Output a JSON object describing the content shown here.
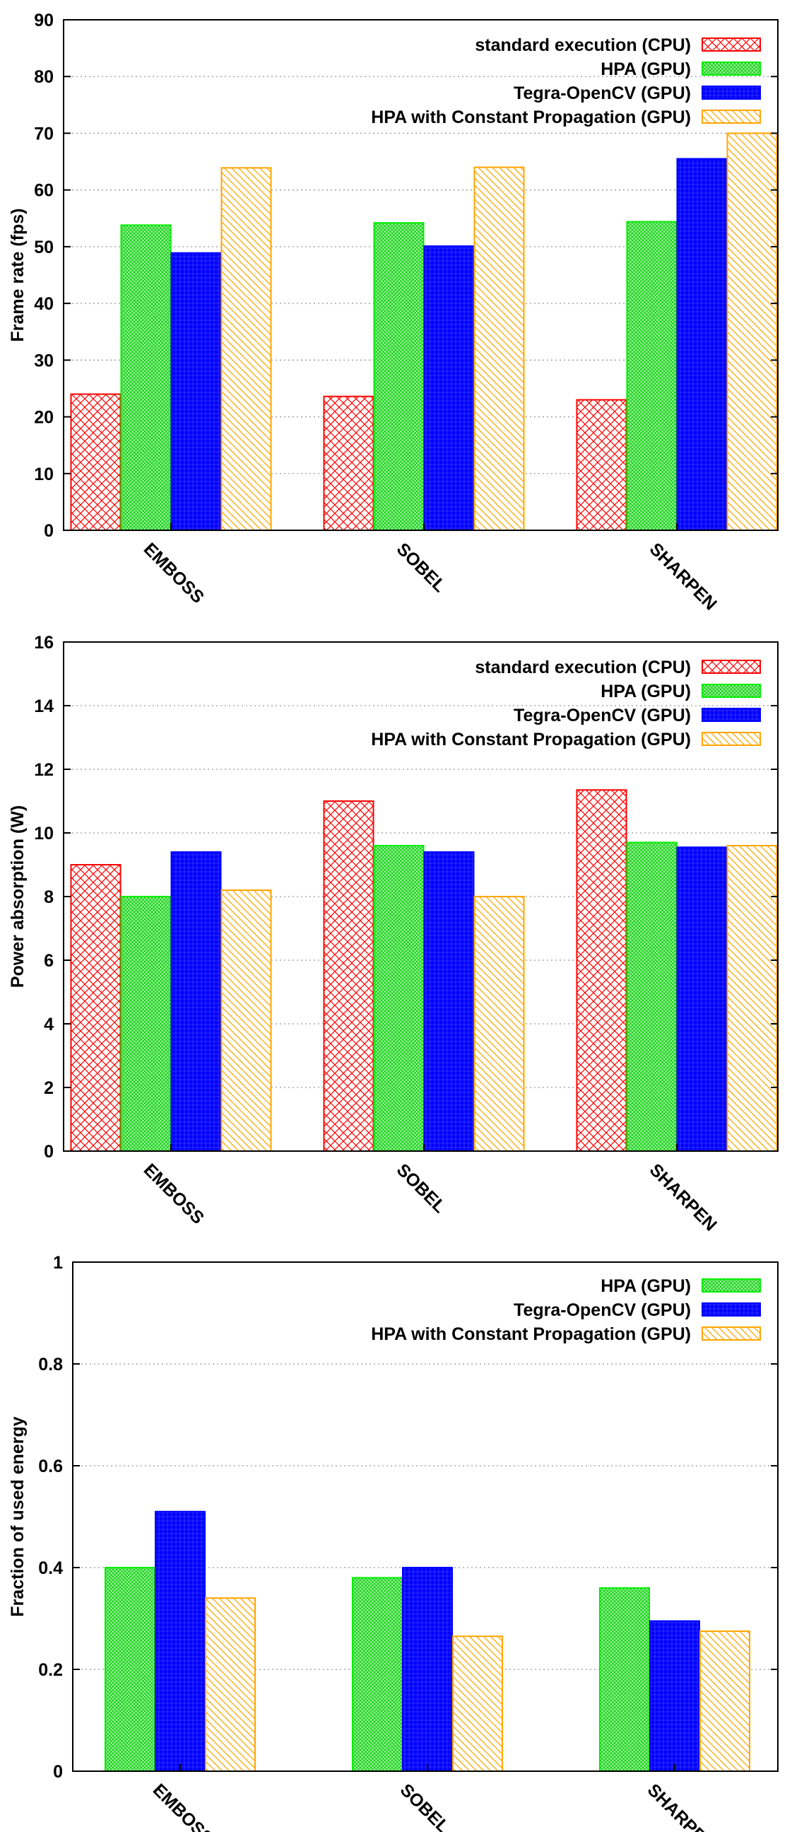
{
  "colors": {
    "cpu": "#ff0000",
    "hpa": "#00ee00",
    "tegra": "#0000ff",
    "hpa_cp": "#ffa500",
    "grid": "#999999",
    "axis": "#000000"
  },
  "chart_data": [
    {
      "type": "bar",
      "ylabel": "Frame rate (fps)",
      "ylim": [
        0,
        90
      ],
      "yticks": [
        "0",
        "10",
        "20",
        "30",
        "40",
        "50",
        "60",
        "70",
        "80",
        "90"
      ],
      "grid": true,
      "legend_position": "top-right",
      "categories": [
        "EMBOSS",
        "SOBEL",
        "SHARPEN"
      ],
      "series": [
        {
          "name": "standard execution (CPU)",
          "color": "#ff0000",
          "pattern": "crosshatch",
          "values": [
            24,
            23.6,
            23
          ]
        },
        {
          "name": "HPA (GPU)",
          "color": "#00ee00",
          "pattern": "fine-grid",
          "values": [
            53.8,
            54.2,
            54.4
          ]
        },
        {
          "name": "Tegra-OpenCV (GPU)",
          "color": "#0000ff",
          "pattern": "dense-grid",
          "values": [
            48.9,
            50.1,
            65.5
          ]
        },
        {
          "name": "HPA with Constant Propagation (GPU)",
          "color": "#ffa500",
          "pattern": "diagonal",
          "values": [
            63.9,
            64,
            70
          ]
        }
      ]
    },
    {
      "type": "bar",
      "ylabel": "Power absorption (W)",
      "ylim": [
        0,
        16
      ],
      "yticks": [
        "0",
        "2",
        "4",
        "6",
        "8",
        "10",
        "12",
        "14",
        "16"
      ],
      "grid": true,
      "legend_position": "top-right",
      "categories": [
        "EMBOSS",
        "SOBEL",
        "SHARPEN"
      ],
      "series": [
        {
          "name": "standard execution (CPU)",
          "color": "#ff0000",
          "pattern": "crosshatch",
          "values": [
            9.0,
            11.0,
            11.35
          ]
        },
        {
          "name": "HPA (GPU)",
          "color": "#00ee00",
          "pattern": "fine-grid",
          "values": [
            8.0,
            9.6,
            9.7
          ]
        },
        {
          "name": "Tegra-OpenCV (GPU)",
          "color": "#0000ff",
          "pattern": "dense-grid",
          "values": [
            9.4,
            9.4,
            9.55
          ]
        },
        {
          "name": "HPA with Constant Propagation (GPU)",
          "color": "#ffa500",
          "pattern": "diagonal",
          "values": [
            8.2,
            8.0,
            9.6
          ]
        }
      ]
    },
    {
      "type": "bar",
      "ylabel": "Fraction of used energy",
      "ylim": [
        0,
        1
      ],
      "yticks": [
        "0",
        "0.2",
        "0.4",
        "0.6",
        "0.8",
        "1"
      ],
      "grid": true,
      "legend_position": "top-right",
      "categories": [
        "EMBOSS",
        "SOBEL",
        "SHARPEN"
      ],
      "series": [
        {
          "name": "HPA (GPU)",
          "color": "#00ee00",
          "pattern": "fine-grid",
          "values": [
            0.4,
            0.38,
            0.36
          ]
        },
        {
          "name": "Tegra-OpenCV (GPU)",
          "color": "#0000ff",
          "pattern": "dense-grid",
          "values": [
            0.51,
            0.4,
            0.295
          ]
        },
        {
          "name": "HPA with Constant Propagation (GPU)",
          "color": "#ffa500",
          "pattern": "diagonal",
          "values": [
            0.34,
            0.265,
            0.275
          ]
        }
      ]
    }
  ]
}
